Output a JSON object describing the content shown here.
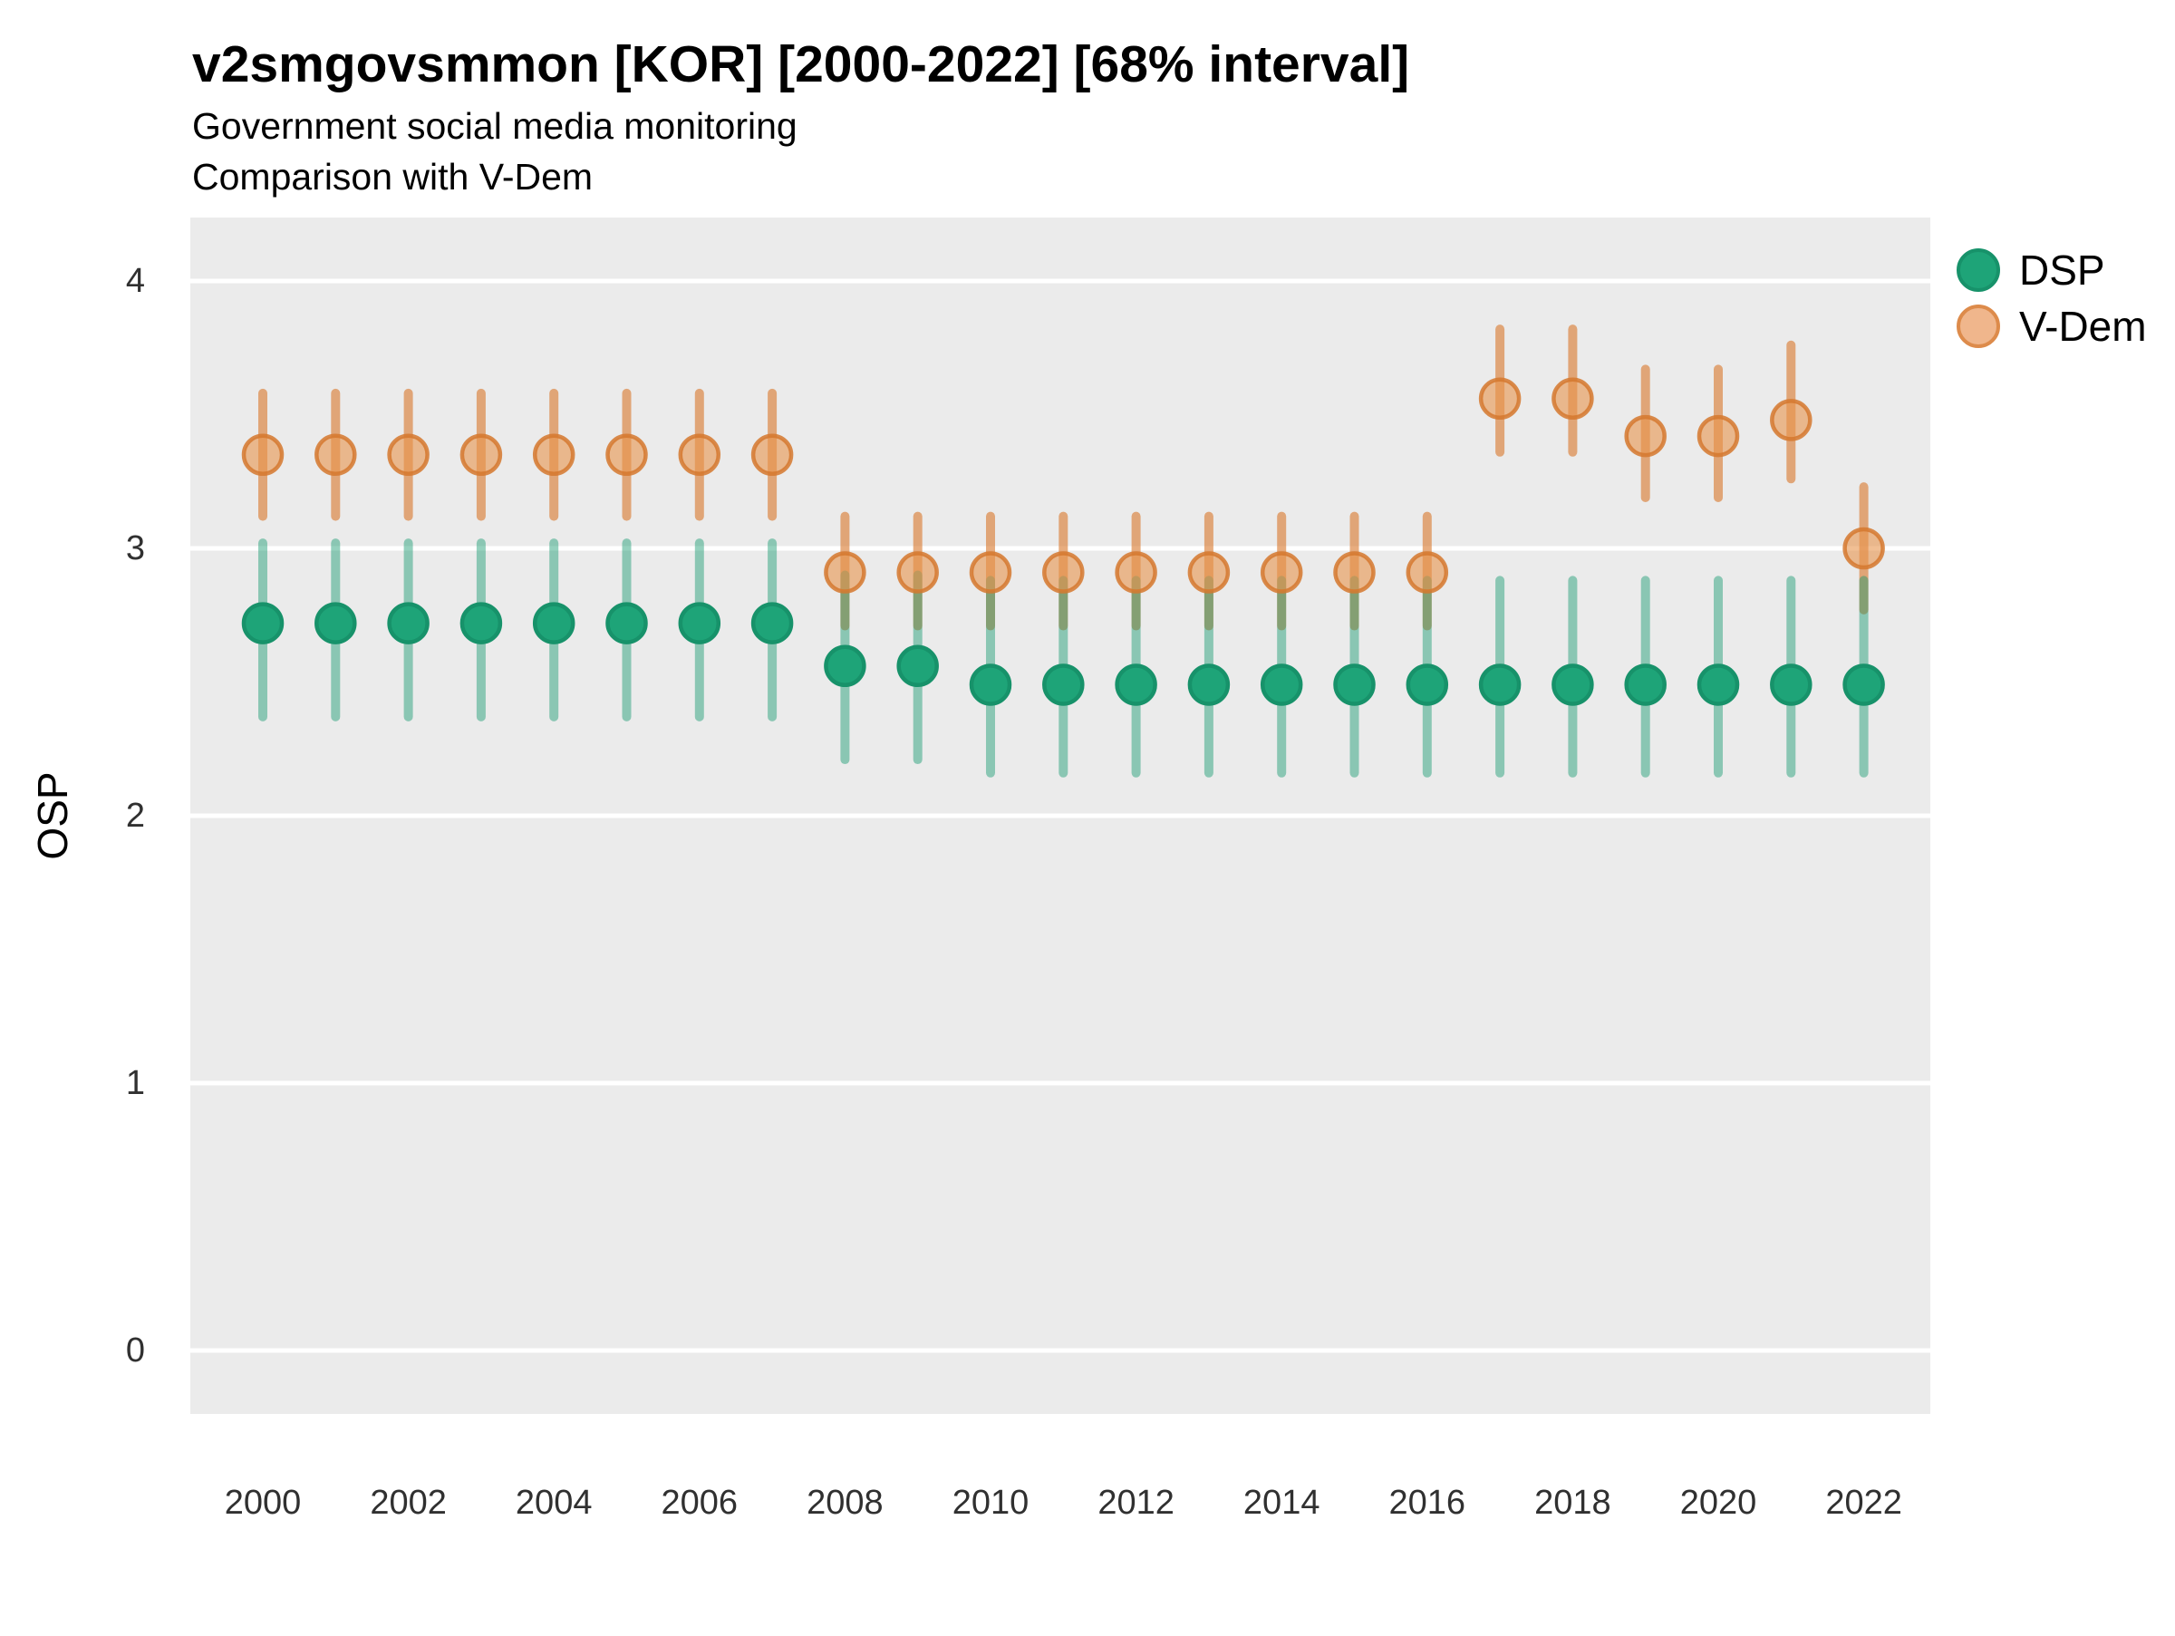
{
  "chart_data": {
    "type": "scatter",
    "title": "v2smgovsmmon [KOR] [2000-2022] [68% interval]",
    "subtitle1": "Government social media monitoring",
    "subtitle2": "Comparison with V-Dem",
    "xlabel": "",
    "ylabel": "OSP",
    "x_ticks": [
      2000,
      2002,
      2004,
      2006,
      2008,
      2010,
      2012,
      2014,
      2016,
      2018,
      2020,
      2022
    ],
    "y_ticks": [
      0,
      1,
      2,
      3,
      4
    ],
    "ylim": [
      -0.25,
      4.25
    ],
    "xlim": [
      1999,
      2023
    ],
    "grid": "horizontal-white-on-gray",
    "panel_background": "#EBEBEB",
    "legend_position": "right-top",
    "legend": [
      {
        "label": "DSP",
        "point_fill": "#1EA478",
        "point_stroke": "#17926A",
        "bar_color": "rgba(21,154,110,0.45)"
      },
      {
        "label": "V-Dem",
        "point_fill": "#F0B68C",
        "point_stroke": "#DD8B4B",
        "bar_color": "rgba(217,119,42,0.6)"
      }
    ],
    "interval_note": "68% interval",
    "series": [
      {
        "year": 2000,
        "dsp": {
          "est": 2.72,
          "lo": 2.37,
          "hi": 3.02
        },
        "vdem": {
          "est": 3.35,
          "lo": 3.12,
          "hi": 3.58
        }
      },
      {
        "year": 2001,
        "dsp": {
          "est": 2.72,
          "lo": 2.37,
          "hi": 3.02
        },
        "vdem": {
          "est": 3.35,
          "lo": 3.12,
          "hi": 3.58
        }
      },
      {
        "year": 2002,
        "dsp": {
          "est": 2.72,
          "lo": 2.37,
          "hi": 3.02
        },
        "vdem": {
          "est": 3.35,
          "lo": 3.12,
          "hi": 3.58
        }
      },
      {
        "year": 2003,
        "dsp": {
          "est": 2.72,
          "lo": 2.37,
          "hi": 3.02
        },
        "vdem": {
          "est": 3.35,
          "lo": 3.12,
          "hi": 3.58
        }
      },
      {
        "year": 2004,
        "dsp": {
          "est": 2.72,
          "lo": 2.37,
          "hi": 3.02
        },
        "vdem": {
          "est": 3.35,
          "lo": 3.12,
          "hi": 3.58
        }
      },
      {
        "year": 2005,
        "dsp": {
          "est": 2.72,
          "lo": 2.37,
          "hi": 3.02
        },
        "vdem": {
          "est": 3.35,
          "lo": 3.12,
          "hi": 3.58
        }
      },
      {
        "year": 2006,
        "dsp": {
          "est": 2.72,
          "lo": 2.37,
          "hi": 3.02
        },
        "vdem": {
          "est": 3.35,
          "lo": 3.12,
          "hi": 3.58
        }
      },
      {
        "year": 2007,
        "dsp": {
          "est": 2.72,
          "lo": 2.37,
          "hi": 3.02
        },
        "vdem": {
          "est": 3.35,
          "lo": 3.12,
          "hi": 3.58
        }
      },
      {
        "year": 2008,
        "dsp": {
          "est": 2.56,
          "lo": 2.21,
          "hi": 2.9
        },
        "vdem": {
          "est": 2.91,
          "lo": 2.71,
          "hi": 3.12
        }
      },
      {
        "year": 2009,
        "dsp": {
          "est": 2.56,
          "lo": 2.21,
          "hi": 2.9
        },
        "vdem": {
          "est": 2.91,
          "lo": 2.71,
          "hi": 3.12
        }
      },
      {
        "year": 2010,
        "dsp": {
          "est": 2.49,
          "lo": 2.16,
          "hi": 2.88
        },
        "vdem": {
          "est": 2.91,
          "lo": 2.71,
          "hi": 3.12
        }
      },
      {
        "year": 2011,
        "dsp": {
          "est": 2.49,
          "lo": 2.16,
          "hi": 2.88
        },
        "vdem": {
          "est": 2.91,
          "lo": 2.71,
          "hi": 3.12
        }
      },
      {
        "year": 2012,
        "dsp": {
          "est": 2.49,
          "lo": 2.16,
          "hi": 2.88
        },
        "vdem": {
          "est": 2.91,
          "lo": 2.71,
          "hi": 3.12
        }
      },
      {
        "year": 2013,
        "dsp": {
          "est": 2.49,
          "lo": 2.16,
          "hi": 2.88
        },
        "vdem": {
          "est": 2.91,
          "lo": 2.71,
          "hi": 3.12
        }
      },
      {
        "year": 2014,
        "dsp": {
          "est": 2.49,
          "lo": 2.16,
          "hi": 2.88
        },
        "vdem": {
          "est": 2.91,
          "lo": 2.71,
          "hi": 3.12
        }
      },
      {
        "year": 2015,
        "dsp": {
          "est": 2.49,
          "lo": 2.16,
          "hi": 2.88
        },
        "vdem": {
          "est": 2.91,
          "lo": 2.71,
          "hi": 3.12
        }
      },
      {
        "year": 2016,
        "dsp": {
          "est": 2.49,
          "lo": 2.16,
          "hi": 2.88
        },
        "vdem": {
          "est": 2.91,
          "lo": 2.71,
          "hi": 3.12
        }
      },
      {
        "year": 2017,
        "dsp": {
          "est": 2.49,
          "lo": 2.16,
          "hi": 2.88
        },
        "vdem": {
          "est": 3.56,
          "lo": 3.36,
          "hi": 3.82
        }
      },
      {
        "year": 2018,
        "dsp": {
          "est": 2.49,
          "lo": 2.16,
          "hi": 2.88
        },
        "vdem": {
          "est": 3.56,
          "lo": 3.36,
          "hi": 3.82
        }
      },
      {
        "year": 2019,
        "dsp": {
          "est": 2.49,
          "lo": 2.16,
          "hi": 2.88
        },
        "vdem": {
          "est": 3.42,
          "lo": 3.19,
          "hi": 3.67
        }
      },
      {
        "year": 2020,
        "dsp": {
          "est": 2.49,
          "lo": 2.16,
          "hi": 2.88
        },
        "vdem": {
          "est": 3.42,
          "lo": 3.19,
          "hi": 3.67
        }
      },
      {
        "year": 2021,
        "dsp": {
          "est": 2.49,
          "lo": 2.16,
          "hi": 2.88
        },
        "vdem": {
          "est": 3.48,
          "lo": 3.26,
          "hi": 3.76
        }
      },
      {
        "year": 2022,
        "dsp": {
          "est": 2.49,
          "lo": 2.16,
          "hi": 2.88
        },
        "vdem": {
          "est": 3.0,
          "lo": 2.77,
          "hi": 3.23
        }
      }
    ]
  }
}
